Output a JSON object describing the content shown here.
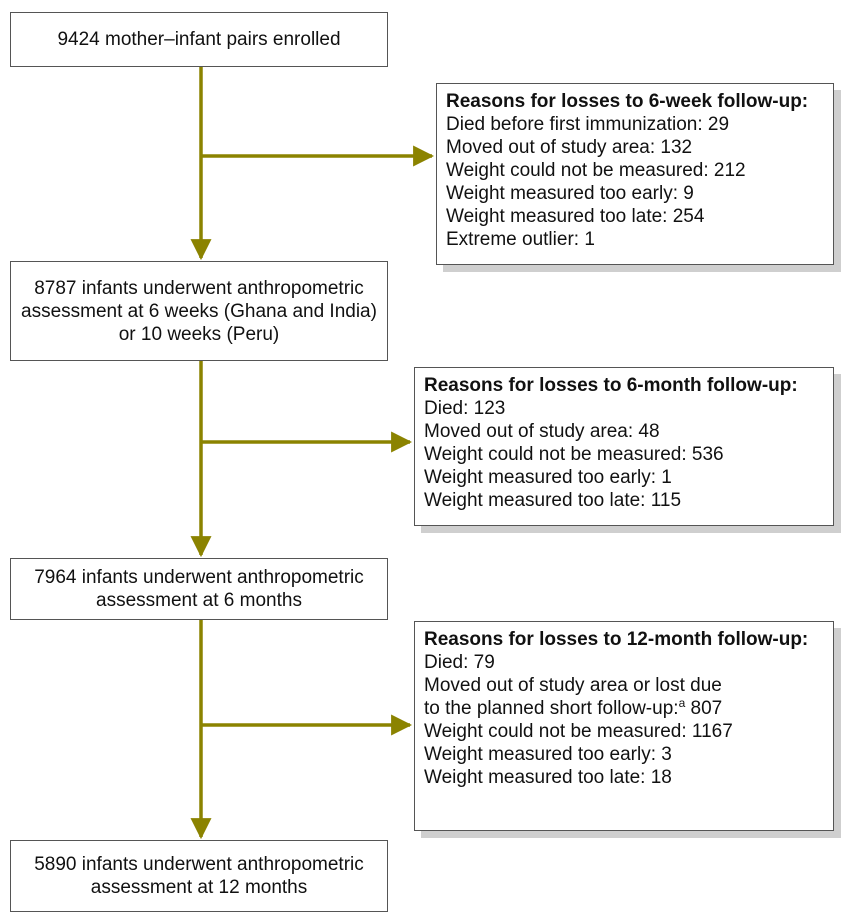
{
  "colors": {
    "arrow": "#8b8300",
    "box_border": "#555555",
    "shadow": "#cfcfcf"
  },
  "steps": [
    {
      "lines": [
        "9424 mother–infant pairs enrolled"
      ]
    },
    {
      "lines": [
        "8787 infants underwent anthropometric",
        "assessment at 6 weeks (Ghana and India)",
        "or 10 weeks (Peru)"
      ]
    },
    {
      "lines": [
        "7964 infants underwent anthropometric",
        "assessment at 6 months"
      ]
    },
    {
      "lines": [
        "5890 infants underwent anthropometric",
        "assessment at 12 months"
      ]
    }
  ],
  "losses": [
    {
      "title": "Reasons for losses to 6-week follow-up:",
      "items": [
        "Died before first immunization: 29",
        "Moved out of study area: 132",
        "Weight could not be measured: 212",
        "Weight measured too early: 9",
        "Weight measured too late: 254",
        "Extreme outlier: 1"
      ]
    },
    {
      "title": "Reasons for losses to 6-month follow-up:",
      "items": [
        "Died: 123",
        "Moved out of study area: 48",
        "Weight could not be measured: 536",
        "Weight measured too early: 1",
        "Weight measured too late: 115"
      ]
    },
    {
      "title": "Reasons for losses to 12-month follow-up:",
      "items_before_note": [
        "Died: 79",
        "Moved out of study area or lost due"
      ],
      "note_line": {
        "text": "to the planned short follow-up:",
        "footnote": "a",
        "value": " 807"
      },
      "items_after_note": [
        "Weight could not be measured: 1167",
        "Weight measured too early: 3",
        "Weight measured too late: 18"
      ]
    }
  ]
}
